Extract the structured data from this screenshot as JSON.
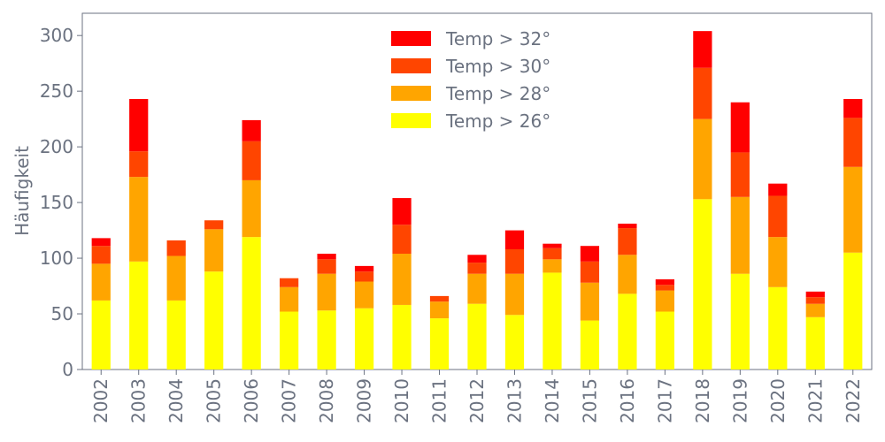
{
  "chart_data": {
    "type": "bar",
    "stacked": true,
    "title": "",
    "xlabel": "",
    "ylabel": "Häufigkeit",
    "ylim": [
      0,
      320
    ],
    "yticks": [
      0,
      50,
      100,
      150,
      200,
      250,
      300
    ],
    "grid": false,
    "legend_position": "top-center",
    "categories": [
      "2002",
      "2003",
      "2004",
      "2005",
      "2006",
      "2007",
      "2008",
      "2009",
      "2010",
      "2011",
      "2012",
      "2013",
      "2014",
      "2015",
      "2016",
      "2017",
      "2018",
      "2019",
      "2020",
      "2021",
      "2022"
    ],
    "series": [
      {
        "name": "Temp > 26°",
        "color": "#ffff00",
        "values": [
          62,
          97,
          62,
          88,
          119,
          52,
          53,
          55,
          58,
          46,
          59,
          49,
          87,
          44,
          68,
          52,
          153,
          86,
          74,
          47,
          105
        ]
      },
      {
        "name": "Temp > 28°",
        "color": "#ffa500",
        "values": [
          33,
          76,
          40,
          38,
          51,
          22,
          33,
          24,
          46,
          15,
          27,
          37,
          12,
          34,
          35,
          19,
          72,
          69,
          45,
          12,
          77
        ]
      },
      {
        "name": "Temp > 30°",
        "color": "#ff4500",
        "values": [
          16,
          23,
          14,
          8,
          35,
          8,
          13,
          9,
          26,
          5,
          10,
          22,
          10,
          19,
          24,
          5,
          46,
          40,
          37,
          6,
          44
        ]
      },
      {
        "name": "Temp > 32°",
        "color": "#ff0000",
        "values": [
          7,
          47,
          0,
          0,
          19,
          0,
          5,
          5,
          24,
          0,
          7,
          17,
          4,
          14,
          4,
          5,
          33,
          45,
          11,
          5,
          17
        ]
      }
    ],
    "legend_order": [
      "Temp > 32°",
      "Temp > 30°",
      "Temp > 28°",
      "Temp > 26°"
    ]
  }
}
